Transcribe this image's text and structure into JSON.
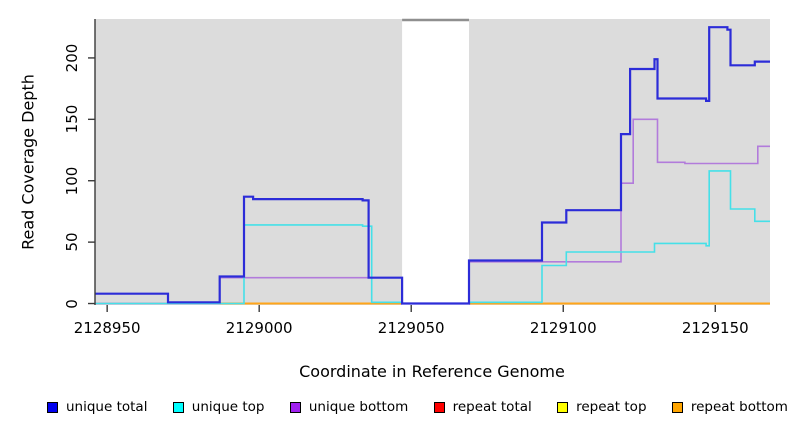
{
  "y_axis": {
    "label": "Read Coverage Depth",
    "tick_labels": [
      "0",
      "50",
      "100",
      "150",
      "200"
    ],
    "ticks": [
      0,
      50,
      100,
      150,
      200
    ]
  },
  "x_axis": {
    "label": "Coordinate in Reference Genome",
    "tick_labels": [
      "2128950",
      "2129000",
      "2129050",
      "2129100",
      "2129150"
    ],
    "ticks": [
      2128950,
      2129000,
      2129050,
      2129100,
      2129150
    ]
  },
  "legend": {
    "items": [
      {
        "label": "unique total",
        "swatch_color": "#0000EE"
      },
      {
        "label": "unique top",
        "swatch_color": "#00FFFF"
      },
      {
        "label": "unique bottom",
        "swatch_color": "#A020F0"
      },
      {
        "label": "repeat total",
        "swatch_color": "#FF0000"
      },
      {
        "label": "repeat top",
        "swatch_color": "#FFFF00"
      },
      {
        "label": "repeat bottom",
        "swatch_color": "#FFA500"
      }
    ]
  },
  "chart_data": {
    "type": "line",
    "line_style": "step",
    "title": "",
    "xlabel": "Coordinate in Reference Genome",
    "ylabel": "Read Coverage Depth",
    "xlim": [
      2128946,
      2129168
    ],
    "ylim": [
      -1.2,
      231.7
    ],
    "x_ticks": [
      2128950,
      2129000,
      2129050,
      2129100,
      2129150
    ],
    "y_ticks": [
      0,
      50,
      100,
      150,
      200
    ],
    "grid": false,
    "legend_position": "bottom",
    "plot_background": "#DCDCDC",
    "axis_color": "#3A3A3A",
    "masked_region": {
      "x_start": 2129047,
      "x_end": 2129069,
      "fill": "#FFFFFF",
      "top_border_color": "#8F8F8F"
    },
    "series": [
      {
        "name": "unique total",
        "color": "#2C2CD8",
        "width": 2.2,
        "z": 6,
        "points": [
          [
            2128946,
            8
          ],
          [
            2128970,
            1
          ],
          [
            2128987,
            22
          ],
          [
            2128995,
            87
          ],
          [
            2128998,
            85
          ],
          [
            2129034,
            84
          ],
          [
            2129036,
            21
          ],
          [
            2129047,
            0
          ],
          [
            2129069,
            35
          ],
          [
            2129093,
            66
          ],
          [
            2129101,
            76
          ],
          [
            2129119,
            138
          ],
          [
            2129122,
            191
          ],
          [
            2129130,
            199
          ],
          [
            2129131,
            167
          ],
          [
            2129147,
            165
          ],
          [
            2129148,
            225
          ],
          [
            2129154,
            223
          ],
          [
            2129155,
            194
          ],
          [
            2129163,
            197
          ],
          [
            2129168,
            197
          ]
        ]
      },
      {
        "name": "unique top",
        "color": "#45E0E8",
        "width": 1.6,
        "z": 5,
        "points": [
          [
            2128946,
            0
          ],
          [
            2128995,
            64
          ],
          [
            2129034,
            63
          ],
          [
            2129037,
            1
          ],
          [
            2129047,
            0
          ],
          [
            2129069,
            1
          ],
          [
            2129093,
            31
          ],
          [
            2129101,
            42
          ],
          [
            2129130,
            49
          ],
          [
            2129147,
            47
          ],
          [
            2129148,
            108
          ],
          [
            2129155,
            77
          ],
          [
            2129163,
            67
          ],
          [
            2129168,
            67
          ]
        ]
      },
      {
        "name": "unique bottom",
        "color": "#B27BDB",
        "width": 1.6,
        "z": 4,
        "points": [
          [
            2128946,
            0
          ],
          [
            2128987,
            21
          ],
          [
            2129047,
            0
          ],
          [
            2129069,
            34
          ],
          [
            2129119,
            98
          ],
          [
            2129123,
            150
          ],
          [
            2129131,
            115
          ],
          [
            2129140,
            114
          ],
          [
            2129164,
            128
          ],
          [
            2129168,
            128
          ]
        ]
      },
      {
        "name": "repeat total",
        "color": "#EC8296",
        "width": 1.6,
        "z": 2,
        "points": [
          [
            2128946,
            0
          ],
          [
            2129168,
            0
          ]
        ]
      },
      {
        "name": "repeat top",
        "color": "#FFFF00",
        "width": 1.2,
        "z": 1,
        "points": [
          [
            2128987,
            0
          ],
          [
            2129168,
            0
          ]
        ]
      },
      {
        "name": "repeat bottom",
        "color": "#FFA519",
        "width": 2.0,
        "z": 3,
        "points": [
          [
            2128987,
            0
          ],
          [
            2129168,
            0
          ]
        ]
      }
    ]
  }
}
